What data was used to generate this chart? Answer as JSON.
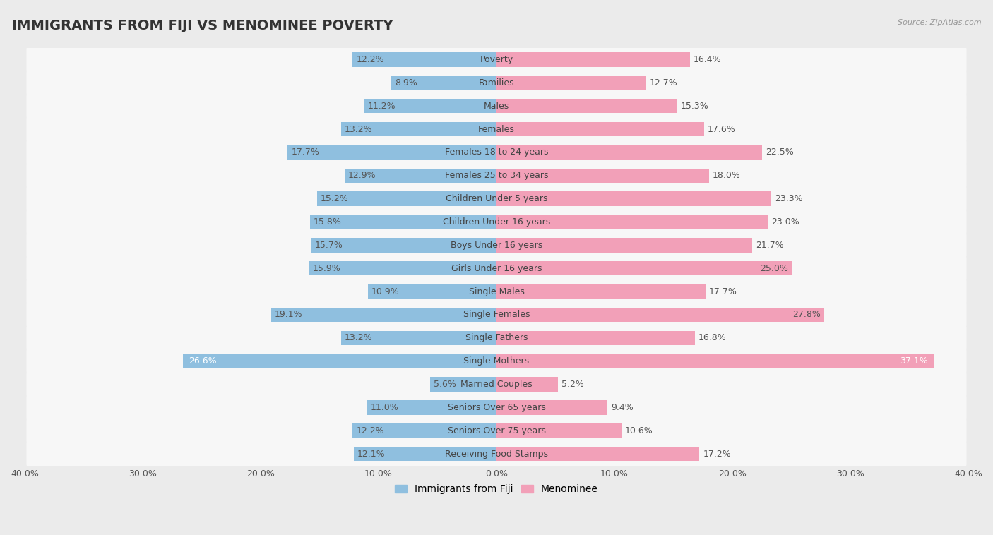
{
  "title": "IMMIGRANTS FROM FIJI VS MENOMINEE POVERTY",
  "source": "Source: ZipAtlas.com",
  "categories": [
    "Poverty",
    "Families",
    "Males",
    "Females",
    "Females 18 to 24 years",
    "Females 25 to 34 years",
    "Children Under 5 years",
    "Children Under 16 years",
    "Boys Under 16 years",
    "Girls Under 16 years",
    "Single Males",
    "Single Females",
    "Single Fathers",
    "Single Mothers",
    "Married Couples",
    "Seniors Over 65 years",
    "Seniors Over 75 years",
    "Receiving Food Stamps"
  ],
  "fiji_values": [
    12.2,
    8.9,
    11.2,
    13.2,
    17.7,
    12.9,
    15.2,
    15.8,
    15.7,
    15.9,
    10.9,
    19.1,
    13.2,
    26.6,
    5.6,
    11.0,
    12.2,
    12.1
  ],
  "menominee_values": [
    16.4,
    12.7,
    15.3,
    17.6,
    22.5,
    18.0,
    23.3,
    23.0,
    21.7,
    25.0,
    17.7,
    27.8,
    16.8,
    37.1,
    5.2,
    9.4,
    10.6,
    17.2
  ],
  "fiji_color": "#8fbfdf",
  "menominee_color": "#f2a0b8",
  "fiji_label": "Immigrants from Fiji",
  "menominee_label": "Menominee",
  "xlim": 40.0,
  "background_color": "#ebebeb",
  "row_color": "#f7f7f7",
  "title_fontsize": 14,
  "bar_height": 0.62,
  "value_fontsize": 9,
  "category_fontsize": 9,
  "tick_fontsize": 9
}
